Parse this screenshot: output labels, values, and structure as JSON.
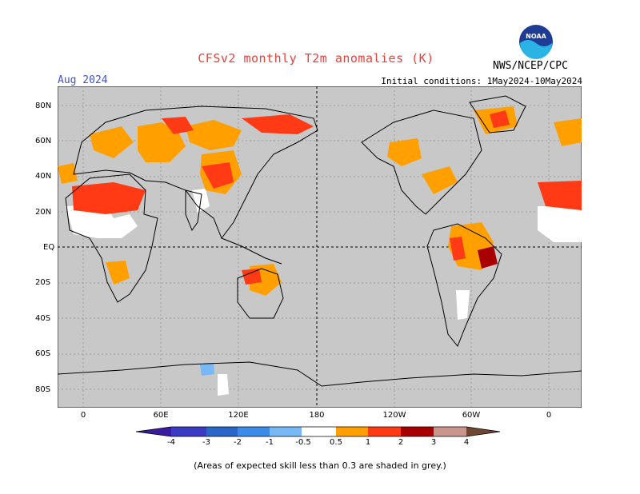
{
  "header": {
    "title": "CFSv2 monthly T2m anomalies (K)",
    "month": "Aug 2024",
    "initial_conditions": "Initial conditions: 1May2024-10May2024",
    "agency": "NWS/NCEP/CPC",
    "logo_text": "NOAA"
  },
  "axes": {
    "lat_labels": [
      "80N",
      "60N",
      "40N",
      "20N",
      "EQ",
      "20S",
      "40S",
      "60S",
      "80S"
    ],
    "lon_labels": [
      "0",
      "60E",
      "120E",
      "180",
      "120W",
      "60W",
      "0"
    ]
  },
  "colorbar": {
    "labels": [
      "-4",
      "-3",
      "-2",
      "-1",
      "-0.5",
      "0.5",
      "1",
      "2",
      "3",
      "4"
    ],
    "colors": {
      "lt_m4": "#3a1aa0",
      "m4_m3": "#3a3ac4",
      "m3_m2": "#2a66c8",
      "m2_m1": "#3a8ce8",
      "m1_m05": "#78b8f4",
      "neutral": "#ffffff",
      "p05_p1": "#ffa000",
      "p1_p2": "#ff3a14",
      "p2_p3": "#a80000",
      "p3_p4": "#c8968c",
      "gt_p4": "#6e4632"
    }
  },
  "map": {
    "background_color": "#c8c8c8",
    "grid": "dotted"
  },
  "footer": "(Areas of expected skill less than 0.3 are shaded in grey.)"
}
